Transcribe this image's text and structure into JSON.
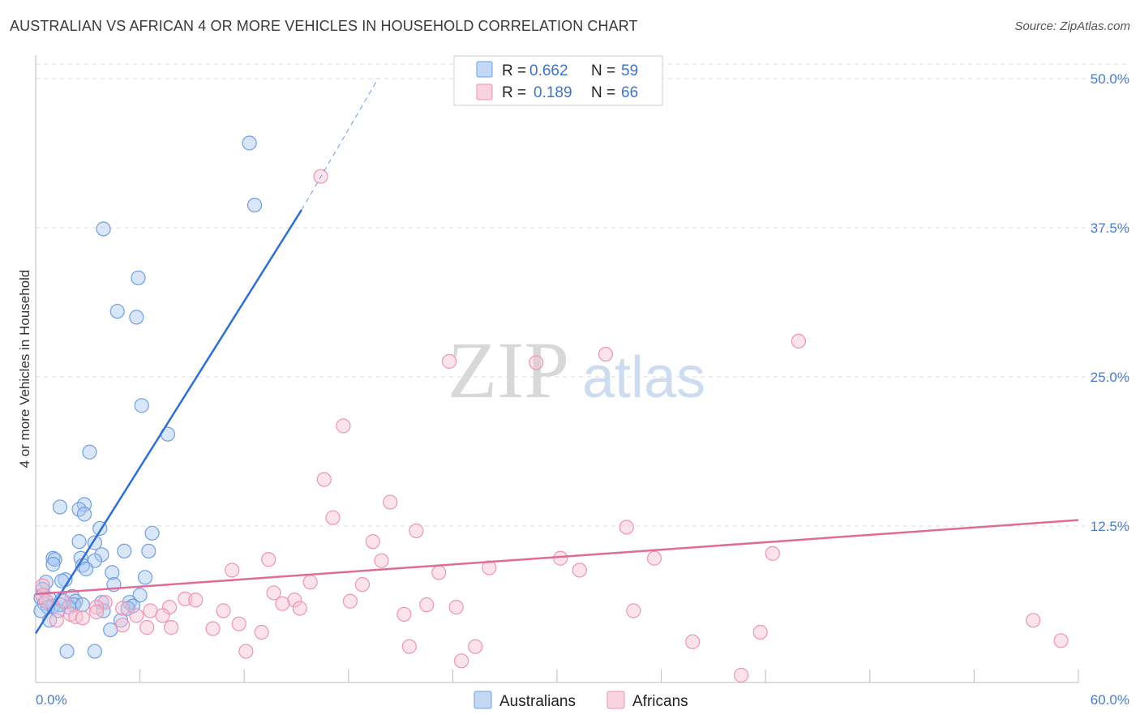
{
  "header": {
    "title": "AUSTRALIAN VS AFRICAN 4 OR MORE VEHICLES IN HOUSEHOLD CORRELATION CHART",
    "source": "Source: ZipAtlas.com"
  },
  "watermark": {
    "zip": "ZIP",
    "atlas": "atlas"
  },
  "colors": {
    "australians_fill": "#a9c7f0",
    "australians_stroke": "#6f9fe0",
    "australians_line": "#2f6fd1",
    "africans_fill": "#f7c1d2",
    "africans_stroke": "#ee94b2",
    "africans_line": "#e06b97",
    "grid": "#dddddd",
    "tick_label": "#4a7cc9"
  },
  "chart_data": {
    "type": "scatter",
    "title": "AUSTRALIAN VS AFRICAN 4 OR MORE VEHICLES IN HOUSEHOLD CORRELATION CHART",
    "xlabel": "",
    "ylabel": "4 or more Vehicles in Household",
    "xlim": [
      0,
      60
    ],
    "ylim": [
      0,
      50
    ],
    "x_tick_labels": [
      "0.0%",
      "60.0%"
    ],
    "y_ticks": [
      12.5,
      25.0,
      37.5,
      50.0
    ],
    "y_tick_labels": [
      "12.5%",
      "25.0%",
      "37.5%",
      "50.0%"
    ],
    "legend": {
      "position": "top-center",
      "entries": [
        {
          "r_label": "R =",
          "r_value": "0.662",
          "n_label": "N =",
          "n_value": "59"
        },
        {
          "r_label": "R =",
          "r_value": "0.189",
          "n_label": "N =",
          "n_value": "66"
        }
      ]
    },
    "series": [
      {
        "name": "Australians",
        "r": 0.662,
        "n": 59,
        "trend": {
          "x0": 0.0,
          "y0": 3.5,
          "x1": 15.3,
          "y1": 39.0,
          "dash_to_x": 19.7,
          "dash_to_y": 50.0
        },
        "points": [
          [
            12.3,
            44.6
          ],
          [
            12.6,
            39.4
          ],
          [
            3.9,
            37.4
          ],
          [
            5.9,
            33.3
          ],
          [
            4.7,
            30.5
          ],
          [
            5.8,
            30.0
          ],
          [
            6.1,
            22.6
          ],
          [
            7.6,
            20.2
          ],
          [
            3.1,
            18.7
          ],
          [
            1.4,
            14.1
          ],
          [
            2.8,
            14.3
          ],
          [
            2.5,
            13.9
          ],
          [
            2.8,
            13.5
          ],
          [
            3.7,
            12.3
          ],
          [
            6.7,
            11.9
          ],
          [
            3.4,
            11.1
          ],
          [
            2.5,
            11.2
          ],
          [
            5.1,
            10.4
          ],
          [
            6.5,
            10.4
          ],
          [
            3.8,
            10.1
          ],
          [
            1.0,
            9.8
          ],
          [
            1.1,
            9.7
          ],
          [
            2.6,
            9.8
          ],
          [
            3.4,
            9.6
          ],
          [
            1.0,
            9.3
          ],
          [
            2.7,
            9.2
          ],
          [
            2.9,
            8.9
          ],
          [
            4.4,
            8.6
          ],
          [
            6.3,
            8.2
          ],
          [
            1.7,
            8.0
          ],
          [
            1.5,
            7.9
          ],
          [
            0.6,
            7.8
          ],
          [
            4.5,
            7.6
          ],
          [
            0.4,
            7.2
          ],
          [
            6.0,
            6.7
          ],
          [
            2.1,
            6.6
          ],
          [
            0.3,
            6.5
          ],
          [
            0.8,
            6.4
          ],
          [
            1.5,
            6.3
          ],
          [
            2.3,
            6.2
          ],
          [
            3.8,
            6.1
          ],
          [
            5.4,
            6.1
          ],
          [
            0.5,
            6.0
          ],
          [
            1.4,
            5.9
          ],
          [
            2.2,
            5.9
          ],
          [
            2.7,
            5.9
          ],
          [
            1.0,
            5.8
          ],
          [
            5.6,
            5.8
          ],
          [
            1.9,
            5.7
          ],
          [
            0.7,
            5.7
          ],
          [
            5.3,
            5.6
          ],
          [
            0.3,
            5.4
          ],
          [
            3.9,
            5.4
          ],
          [
            1.3,
            5.4
          ],
          [
            4.9,
            4.6
          ],
          [
            0.8,
            4.6
          ],
          [
            4.3,
            3.8
          ],
          [
            1.8,
            2.0
          ],
          [
            3.4,
            2.0
          ]
        ]
      },
      {
        "name": "Africans",
        "r": 0.189,
        "n": 66,
        "trend": {
          "x0": 0.0,
          "y0": 6.8,
          "x1": 60.0,
          "y1": 13.0
        },
        "points": [
          [
            16.4,
            41.8
          ],
          [
            43.9,
            28.0
          ],
          [
            32.8,
            26.9
          ],
          [
            23.8,
            26.3
          ],
          [
            28.8,
            26.2
          ],
          [
            17.7,
            20.9
          ],
          [
            16.6,
            16.4
          ],
          [
            20.4,
            14.5
          ],
          [
            17.1,
            13.2
          ],
          [
            21.9,
            12.1
          ],
          [
            34.0,
            12.4
          ],
          [
            19.4,
            11.2
          ],
          [
            19.9,
            9.6
          ],
          [
            13.4,
            9.7
          ],
          [
            30.2,
            9.8
          ],
          [
            35.6,
            9.8
          ],
          [
            42.4,
            10.2
          ],
          [
            11.3,
            8.8
          ],
          [
            26.1,
            9.0
          ],
          [
            23.2,
            8.6
          ],
          [
            31.3,
            8.8
          ],
          [
            15.8,
            7.8
          ],
          [
            18.8,
            7.6
          ],
          [
            0.4,
            7.5
          ],
          [
            13.7,
            6.9
          ],
          [
            0.4,
            6.7
          ],
          [
            8.6,
            6.4
          ],
          [
            0.6,
            6.2
          ],
          [
            1.6,
            6.2
          ],
          [
            9.2,
            6.3
          ],
          [
            14.9,
            6.3
          ],
          [
            18.1,
            6.2
          ],
          [
            4.0,
            6.1
          ],
          [
            14.2,
            6.0
          ],
          [
            22.5,
            5.9
          ],
          [
            24.2,
            5.7
          ],
          [
            7.7,
            5.7
          ],
          [
            3.5,
            5.7
          ],
          [
            15.2,
            5.6
          ],
          [
            5.0,
            5.6
          ],
          [
            10.8,
            5.4
          ],
          [
            6.6,
            5.4
          ],
          [
            3.5,
            5.3
          ],
          [
            34.4,
            5.4
          ],
          [
            21.2,
            5.1
          ],
          [
            2.0,
            5.1
          ],
          [
            5.8,
            5.0
          ],
          [
            7.3,
            5.0
          ],
          [
            2.3,
            4.9
          ],
          [
            2.7,
            4.8
          ],
          [
            1.2,
            4.6
          ],
          [
            11.7,
            4.3
          ],
          [
            5.0,
            4.2
          ],
          [
            6.4,
            4.0
          ],
          [
            7.8,
            4.0
          ],
          [
            10.2,
            3.9
          ],
          [
            13.0,
            3.6
          ],
          [
            41.7,
            3.6
          ],
          [
            57.4,
            4.6
          ],
          [
            59.0,
            2.9
          ],
          [
            37.8,
            2.8
          ],
          [
            21.5,
            2.4
          ],
          [
            25.3,
            2.4
          ],
          [
            12.1,
            2.0
          ],
          [
            24.5,
            1.2
          ],
          [
            40.6,
            0.0
          ]
        ]
      }
    ]
  }
}
